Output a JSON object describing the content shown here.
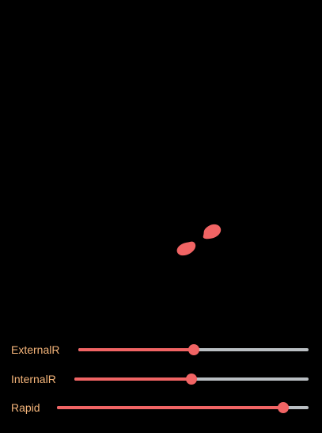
{
  "colors": {
    "background": "#000000",
    "accent": "#f16464",
    "track": "#b9bec2",
    "label": "#f5b57a"
  },
  "sliders": [
    {
      "label": "ExternalR",
      "value": 0.5
    },
    {
      "label": "InternalR",
      "value": 0.5
    },
    {
      "label": "Rapid",
      "value": 0.9
    }
  ]
}
